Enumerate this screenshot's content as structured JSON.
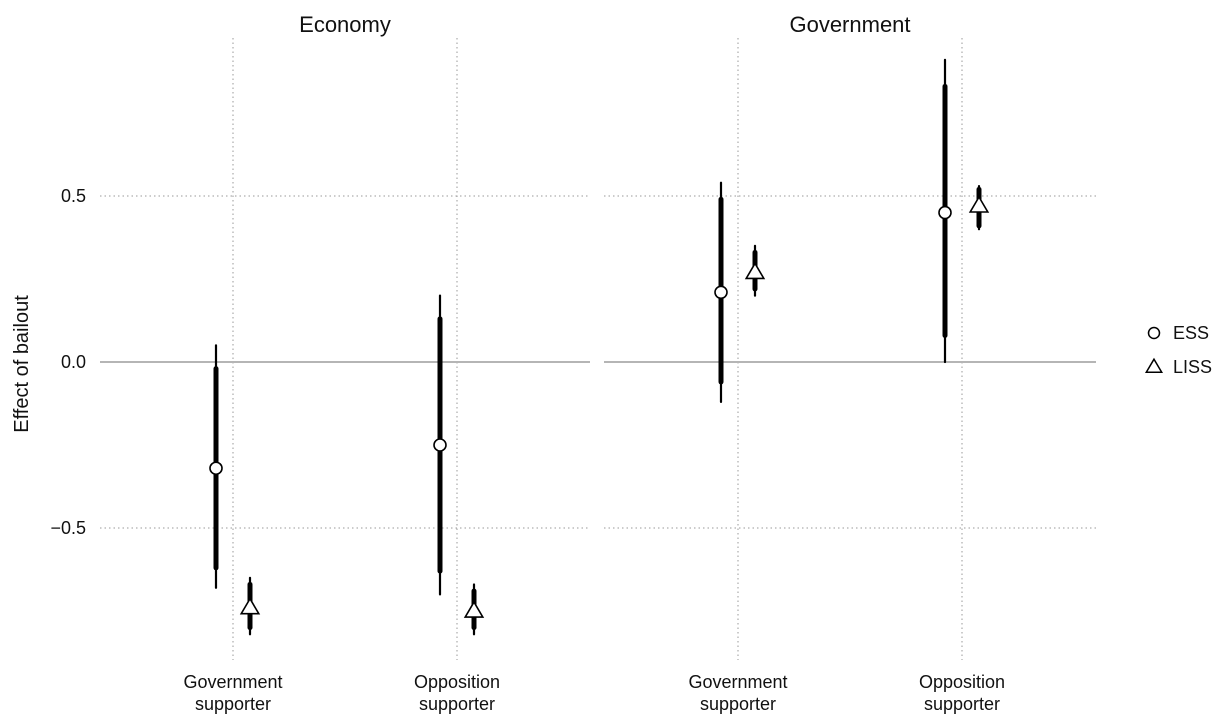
{
  "chart_data": {
    "type": "scatter",
    "title": "",
    "ylabel": "Effect of bailout",
    "xlabel": "",
    "ylim": [
      -0.9,
      1.0
    ],
    "yticks": [
      {
        "value": 0.5,
        "label": "0.5"
      },
      {
        "value": 0.0,
        "label": "0.0"
      },
      {
        "value": -0.5,
        "label": "−0.5"
      }
    ],
    "categories": [
      {
        "line1": "Government",
        "line2": "supporter"
      },
      {
        "line1": "Opposition",
        "line2": "supporter"
      }
    ],
    "grid": true,
    "reference_line": 0.0,
    "legend": {
      "position": "right",
      "entries": [
        {
          "label": "ESS",
          "marker": "circle"
        },
        {
          "label": "LISS",
          "marker": "triangle"
        }
      ]
    },
    "facets": [
      {
        "title": "Economy",
        "series": [
          {
            "name": "ESS",
            "marker": "circle",
            "points": [
              {
                "category": "Government supporter",
                "estimate": -0.32,
                "ci_inner": [
                  -0.62,
                  -0.02
                ],
                "ci_outer": [
                  -0.68,
                  0.05
                ]
              },
              {
                "category": "Opposition supporter",
                "estimate": -0.25,
                "ci_inner": [
                  -0.63,
                  0.13
                ],
                "ci_outer": [
                  -0.7,
                  0.2
                ]
              }
            ]
          },
          {
            "name": "LISS",
            "marker": "triangle",
            "points": [
              {
                "category": "Government supporter",
                "estimate": -0.74,
                "ci_inner": [
                  -0.8,
                  -0.67
                ],
                "ci_outer": [
                  -0.82,
                  -0.65
                ]
              },
              {
                "category": "Opposition supporter",
                "estimate": -0.75,
                "ci_inner": [
                  -0.8,
                  -0.69
                ],
                "ci_outer": [
                  -0.82,
                  -0.67
                ]
              }
            ]
          }
        ]
      },
      {
        "title": "Government",
        "series": [
          {
            "name": "ESS",
            "marker": "circle",
            "points": [
              {
                "category": "Government supporter",
                "estimate": 0.21,
                "ci_inner": [
                  -0.06,
                  0.49
                ],
                "ci_outer": [
                  -0.12,
                  0.54
                ]
              },
              {
                "category": "Opposition supporter",
                "estimate": 0.45,
                "ci_inner": [
                  0.08,
                  0.83
                ],
                "ci_outer": [
                  0.0,
                  0.91
                ]
              }
            ]
          },
          {
            "name": "LISS",
            "marker": "triangle",
            "points": [
              {
                "category": "Government supporter",
                "estimate": 0.27,
                "ci_inner": [
                  0.22,
                  0.33
                ],
                "ci_outer": [
                  0.2,
                  0.35
                ]
              },
              {
                "category": "Opposition supporter",
                "estimate": 0.47,
                "ci_inner": [
                  0.41,
                  0.52
                ],
                "ci_outer": [
                  0.4,
                  0.53
                ]
              }
            ]
          }
        ]
      }
    ]
  }
}
